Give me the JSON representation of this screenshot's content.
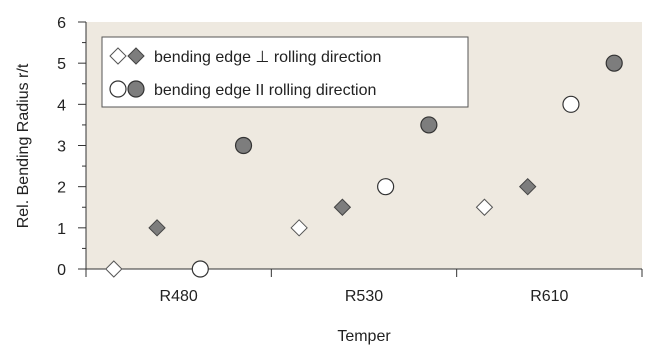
{
  "chart_data": {
    "type": "scatter",
    "xlabel": "Temper",
    "ylabel": "Rel. Bending Radius r/t",
    "ylim": [
      0,
      6
    ],
    "yticks": [
      0,
      1,
      2,
      3,
      4,
      5,
      6
    ],
    "categories": [
      "R480",
      "R530",
      "R610"
    ],
    "grid": false,
    "legend_position": "top-left",
    "plot_background": "#eee9e0",
    "series": [
      {
        "name": "bending edge ⊥ rolling direction",
        "values": [
          0,
          1,
          1.5
        ],
        "marker": "diamond",
        "fill": "#ffffff",
        "stroke": "#555555"
      },
      {
        "name": "bending edge ⊥ rolling direction",
        "values": [
          1,
          1.5,
          2
        ],
        "marker": "diamond",
        "fill": "#7d7d7d",
        "stroke": "#444444",
        "legend_hidden": true
      },
      {
        "name": "bending edge II rolling direction",
        "values": [
          0,
          2,
          4
        ],
        "marker": "circle",
        "fill": "#ffffff",
        "stroke": "#333333"
      },
      {
        "name": "bending edge II rolling direction",
        "values": [
          3,
          3.5,
          5
        ],
        "marker": "circle",
        "fill": "#7d7d7d",
        "stroke": "#333333",
        "legend_hidden": true
      }
    ]
  }
}
